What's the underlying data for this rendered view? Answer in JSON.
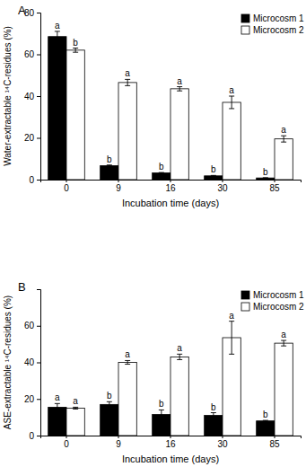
{
  "chart_data": [
    {
      "type": "bar",
      "title": "A",
      "x_label": "Incubation time (days)",
      "y_label": "Water-extractable ¹⁴C-residues (%)",
      "categories": [
        "0",
        "9",
        "16",
        "30",
        "85"
      ],
      "series": [
        {
          "name": "Microcosm 1",
          "color": "#000000",
          "values": [
            68.5,
            6.7,
            3.2,
            1.8,
            0.8
          ],
          "errors": [
            2.5,
            0.3,
            0.2,
            0.2,
            0.1
          ],
          "letters": [
            "a",
            "b",
            "b",
            "b",
            "b"
          ]
        },
        {
          "name": "Microcosm 2",
          "color": "#ffffff",
          "values": [
            62,
            46.5,
            43.5,
            37,
            19.5
          ],
          "errors": [
            1,
            1.5,
            1,
            3,
            1.5
          ],
          "letters": [
            "b",
            "a",
            "a",
            "a",
            "a"
          ]
        }
      ],
      "ylim": [
        0,
        80
      ],
      "yticks": [
        0,
        20,
        40,
        60,
        80
      ],
      "grid": false,
      "legend": "top-right"
    },
    {
      "type": "bar",
      "title": "B",
      "x_label": "Incubation time (days)",
      "y_label": "ASE-extractable ¹⁴C-residues (%)",
      "categories": [
        "0",
        "9",
        "16",
        "30",
        "85"
      ],
      "series": [
        {
          "name": "Microcosm 1",
          "color": "#000000",
          "values": [
            15.5,
            17,
            11.5,
            11,
            8
          ],
          "errors": [
            2,
            1.5,
            2.5,
            1.5,
            0.3
          ],
          "letters": [
            "a",
            "b",
            "b",
            "b",
            "b"
          ]
        },
        {
          "name": "Microcosm 2",
          "color": "#ffffff",
          "values": [
            15,
            40,
            43,
            53.5,
            50.5
          ],
          "errors": [
            0.5,
            1,
            1.5,
            9,
            1.5
          ],
          "letters": [
            "a",
            "a",
            "a",
            "a",
            "a"
          ]
        }
      ],
      "ylim": [
        0,
        80
      ],
      "yticks": [
        0,
        20,
        40,
        60
      ],
      "grid": false,
      "legend": "top-right"
    }
  ]
}
